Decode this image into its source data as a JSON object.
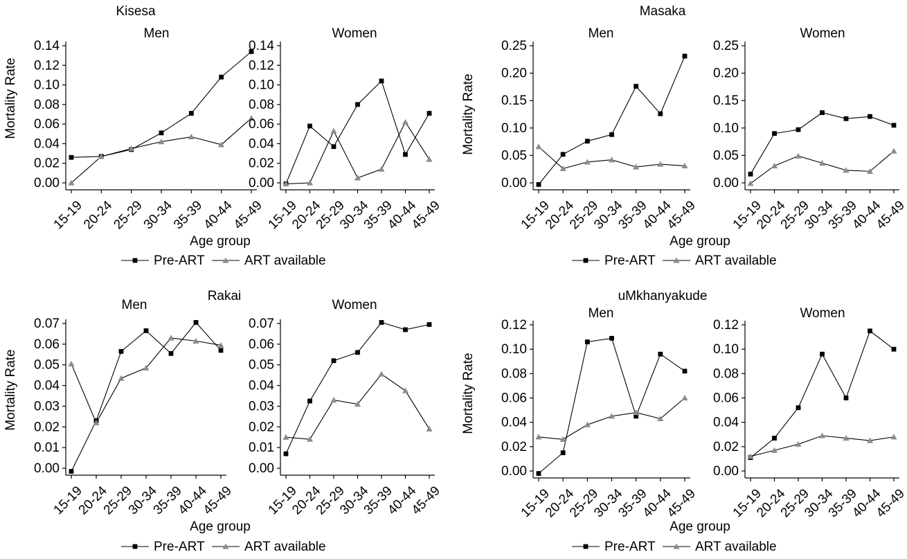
{
  "style": {
    "pre_art_color": "#000000",
    "art_color": "#8c8c8c",
    "axis_color": "#000000",
    "pre_art_marker": "square",
    "art_marker": "triangle"
  },
  "chart_data": [
    {
      "type": "line",
      "site": "Kisesa",
      "ylabel": "Mortality Rate",
      "xlabel": "Age group",
      "legend": [
        "Pre-ART",
        "ART available"
      ],
      "legend_position": "bottom-center",
      "panels": [
        {
          "title": "Men",
          "categories": [
            "15-19",
            "20-24",
            "25-29",
            "30-34",
            "35-39",
            "40-44",
            "45-49"
          ],
          "ylim": [
            0,
            0.14
          ],
          "yticks": [
            "0.00",
            "0.02",
            "0.04",
            "0.06",
            "0.08",
            "0.10",
            "0.12",
            "0.14"
          ],
          "series": [
            {
              "name": "Pre-ART",
              "values": [
                0.026,
                0.027,
                0.034,
                0.051,
                0.071,
                0.108,
                0.134
              ]
            },
            {
              "name": "ART available",
              "values": [
                0.0,
                0.027,
                0.035,
                0.042,
                0.047,
                0.039,
                0.066
              ]
            }
          ]
        },
        {
          "title": "Women",
          "categories": [
            "15-19",
            "20-24",
            "25-29",
            "30-34",
            "35-39",
            "40-44",
            "45-49"
          ],
          "ylim": [
            0,
            0.14
          ],
          "yticks": [
            "0.00",
            "0.02",
            "0.04",
            "0.06",
            "0.08",
            "0.10",
            "0.12",
            "0.14"
          ],
          "series": [
            {
              "name": "Pre-ART",
              "values": [
                -0.001,
                0.058,
                0.037,
                0.08,
                0.104,
                0.029,
                0.071
              ]
            },
            {
              "name": "ART available",
              "values": [
                -0.001,
                0.0,
                0.053,
                0.005,
                0.014,
                0.062,
                0.024
              ]
            }
          ]
        }
      ]
    },
    {
      "type": "line",
      "site": "Masaka",
      "ylabel": "Mortality Rate",
      "xlabel": "Age group",
      "legend": [
        "Pre-ART",
        "ART available"
      ],
      "legend_position": "bottom-center",
      "panels": [
        {
          "title": "Men",
          "categories": [
            "15-19",
            "20-24",
            "25-29",
            "30-34",
            "35-39",
            "40-44",
            "45-49"
          ],
          "ylim": [
            0,
            0.25
          ],
          "yticks": [
            "0.00",
            "0.05",
            "0.10",
            "0.15",
            "0.20",
            "0.25"
          ],
          "series": [
            {
              "name": "Pre-ART",
              "values": [
                -0.003,
                0.052,
                0.076,
                0.088,
                0.176,
                0.126,
                0.231
              ]
            },
            {
              "name": "ART available",
              "values": [
                0.066,
                0.026,
                0.038,
                0.042,
                0.029,
                0.034,
                0.031
              ]
            }
          ]
        },
        {
          "title": "Women",
          "categories": [
            "15-19",
            "20-24",
            "25-29",
            "30-34",
            "35-39",
            "40-44",
            "45-49"
          ],
          "ylim": [
            0,
            0.25
          ],
          "yticks": [
            "0.00",
            "0.05",
            "0.10",
            "0.15",
            "0.20",
            "0.25"
          ],
          "series": [
            {
              "name": "Pre-ART",
              "values": [
                0.016,
                0.09,
                0.097,
                0.128,
                0.117,
                0.121,
                0.105
              ]
            },
            {
              "name": "ART available",
              "values": [
                -0.001,
                0.031,
                0.049,
                0.036,
                0.023,
                0.021,
                0.058
              ]
            }
          ]
        }
      ]
    },
    {
      "type": "line",
      "site": "Rakai",
      "ylabel": "Mortality Rate",
      "xlabel": "Age group",
      "legend": [
        "Pre-ART",
        "ART available"
      ],
      "legend_position": "bottom-center",
      "panels": [
        {
          "title": "Men",
          "categories": [
            "15-19",
            "20-24",
            "25-29",
            "30-34",
            "35-39",
            "40-44",
            "45-49"
          ],
          "ylim": [
            0,
            0.07
          ],
          "yticks": [
            "0.00",
            "0.01",
            "0.02",
            "0.03",
            "0.04",
            "0.05",
            "0.06",
            "0.07"
          ],
          "series": [
            {
              "name": "Pre-ART",
              "values": [
                -0.0015,
                0.023,
                0.0565,
                0.0665,
                0.0555,
                0.0705,
                0.057
              ]
            },
            {
              "name": "ART available",
              "values": [
                0.0505,
                0.022,
                0.0435,
                0.0485,
                0.063,
                0.0615,
                0.0595
              ]
            }
          ]
        },
        {
          "title": "Women",
          "categories": [
            "15-19",
            "20-24",
            "25-29",
            "30-34",
            "35-39",
            "40-44",
            "45-49"
          ],
          "ylim": [
            0,
            0.07
          ],
          "yticks": [
            "0.00",
            "0.01",
            "0.02",
            "0.03",
            "0.04",
            "0.05",
            "0.06",
            "0.07"
          ],
          "series": [
            {
              "name": "Pre-ART",
              "values": [
                0.007,
                0.0325,
                0.052,
                0.056,
                0.0705,
                0.067,
                0.0695
              ]
            },
            {
              "name": "ART available",
              "values": [
                0.015,
                0.014,
                0.033,
                0.031,
                0.0455,
                0.0375,
                0.019
              ]
            }
          ]
        }
      ]
    },
    {
      "type": "line",
      "site": "uMkhanyakude",
      "ylabel": "Mortality Rate",
      "xlabel": "Age group",
      "legend": [
        "Pre-ART",
        "ART available"
      ],
      "legend_position": "bottom-center",
      "panels": [
        {
          "title": "Men",
          "categories": [
            "15-19",
            "20-24",
            "25-29",
            "30-34",
            "35-39",
            "40-44",
            "45-49"
          ],
          "ylim": [
            0,
            0.12
          ],
          "yticks": [
            "0.00",
            "0.02",
            "0.04",
            "0.06",
            "0.08",
            "0.10",
            "0.12"
          ],
          "series": [
            {
              "name": "Pre-ART",
              "values": [
                -0.002,
                0.015,
                0.106,
                0.109,
                0.045,
                0.096,
                0.082
              ]
            },
            {
              "name": "ART available",
              "values": [
                0.028,
                0.026,
                0.038,
                0.045,
                0.048,
                0.043,
                0.06
              ]
            }
          ]
        },
        {
          "title": "Women",
          "categories": [
            "15-19",
            "20-24",
            "25-29",
            "30-34",
            "35-39",
            "40-44",
            "45-49"
          ],
          "ylim": [
            0,
            0.12
          ],
          "yticks": [
            "0.00",
            "0.02",
            "0.04",
            "0.06",
            "0.08",
            "0.10",
            "0.12"
          ],
          "series": [
            {
              "name": "Pre-ART",
              "values": [
                0.011,
                0.027,
                0.052,
                0.096,
                0.06,
                0.115,
                0.1
              ]
            },
            {
              "name": "ART available",
              "values": [
                0.012,
                0.017,
                0.022,
                0.029,
                0.027,
                0.025,
                0.028
              ]
            }
          ]
        }
      ]
    }
  ]
}
